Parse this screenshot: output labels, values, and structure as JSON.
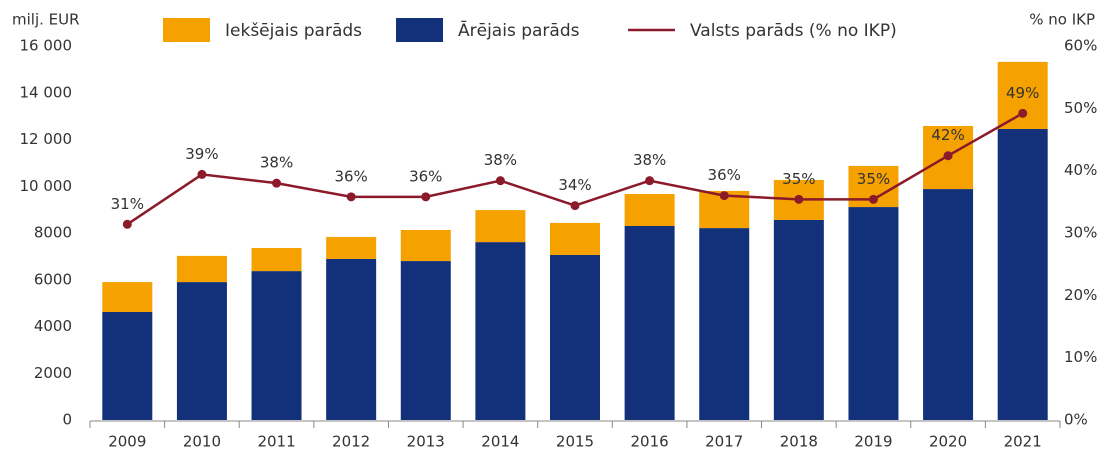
{
  "chart_data": {
    "type": "bar",
    "stacked": true,
    "y_label": "milj. EUR",
    "y2_label": "% no IKP",
    "categories": [
      "2009",
      "2010",
      "2011",
      "2012",
      "2013",
      "2014",
      "2015",
      "2016",
      "2017",
      "2018",
      "2019",
      "2020",
      "2021"
    ],
    "series": [
      {
        "name": "Iekšējais parāds",
        "color": "#f5a100",
        "values": [
          1280,
          1120,
          990,
          940,
          1330,
          1370,
          1370,
          1370,
          1590,
          1710,
          1760,
          2700,
          2870
        ]
      },
      {
        "name": "Ārējais parāds",
        "color": "#13317a",
        "values": [
          4620,
          5900,
          6370,
          6890,
          6800,
          7610,
          7060,
          8300,
          8210,
          8560,
          9110,
          9880,
          12450
        ]
      },
      {
        "name": "Valsts parāds (% no IKP)",
        "type": "line",
        "axis": "y2",
        "color": "#8b1a2b",
        "values": [
          31.4,
          39.4,
          38.0,
          35.8,
          35.8,
          38.4,
          34.4,
          38.4,
          36.0,
          35.4,
          35.4,
          42.4,
          49.2
        ],
        "value_labels": [
          "31%",
          "39%",
          "38%",
          "36%",
          "36%",
          "38%",
          "34%",
          "38%",
          "36%",
          "35%",
          "35%",
          "42%",
          "49%"
        ]
      }
    ],
    "ylim": [
      0,
      16000
    ],
    "yticks": [
      0,
      2000,
      4000,
      6000,
      8000,
      {
        "value": 10000,
        "label": "10 000"
      },
      {
        "value": 12000,
        "label": "12 000"
      },
      {
        "value": 14000,
        "label": "14 000"
      },
      {
        "value": 16000,
        "label": "16 000"
      }
    ],
    "y2lim": [
      0,
      60
    ],
    "y2ticks": [
      {
        "value": 0,
        "label": "0%"
      },
      {
        "value": 10,
        "label": "10%"
      },
      {
        "value": 20,
        "label": "20%"
      },
      {
        "value": 30,
        "label": "30%"
      },
      {
        "value": 40,
        "label": "40%"
      },
      {
        "value": 50,
        "label": "50%"
      },
      {
        "value": 60,
        "label": "60%"
      }
    ],
    "grid": false
  }
}
